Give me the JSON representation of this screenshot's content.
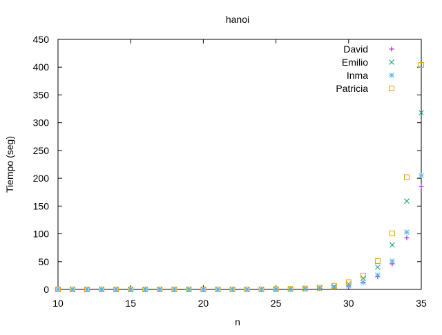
{
  "chart_data": {
    "type": "scatter",
    "title": "hanoi",
    "xlabel": "n",
    "ylabel": "Tiempo (seg)",
    "xlim": [
      10,
      35
    ],
    "ylim": [
      0,
      450
    ],
    "xticks": [
      10,
      15,
      20,
      25,
      30,
      35
    ],
    "yticks": [
      0,
      50,
      100,
      150,
      200,
      250,
      300,
      350,
      400,
      450
    ],
    "grid": false,
    "legend_position": "top-right",
    "x": [
      10,
      11,
      12,
      13,
      14,
      15,
      16,
      17,
      18,
      19,
      20,
      21,
      22,
      23,
      24,
      25,
      26,
      27,
      28,
      29,
      30,
      31,
      32,
      33,
      34,
      35
    ],
    "series": [
      {
        "name": "David",
        "marker": "plus",
        "color": "#9400d3",
        "values": [
          0,
          0,
          0,
          0,
          0,
          0,
          0,
          0,
          0,
          0,
          0,
          0,
          0,
          0,
          0,
          0.2,
          0.4,
          0.8,
          1.5,
          3,
          6,
          12,
          23,
          46,
          93,
          185
        ]
      },
      {
        "name": "Emilio",
        "marker": "cross",
        "color": "#009e73",
        "values": [
          0,
          0,
          0,
          0,
          0,
          0,
          0,
          0,
          0,
          0,
          0,
          0,
          0,
          0,
          0,
          0.3,
          0.6,
          1.2,
          2.5,
          5,
          10,
          20,
          40,
          80,
          159,
          318
        ]
      },
      {
        "name": "Inma",
        "marker": "star",
        "color": "#56b4e9",
        "values": [
          0,
          0,
          0,
          0,
          0,
          0,
          0,
          0,
          0,
          0,
          0,
          0,
          0,
          0,
          0,
          0.2,
          0.4,
          0.8,
          1.6,
          3.2,
          6.5,
          13,
          26,
          51,
          103,
          205
        ]
      },
      {
        "name": "Patricia",
        "marker": "square",
        "color": "#e69f00",
        "values": [
          0,
          0,
          0,
          0,
          0,
          0,
          0,
          0,
          0,
          0,
          0,
          0,
          0,
          0,
          0,
          0.4,
          0.8,
          1.6,
          3.2,
          6.5,
          13,
          25,
          51,
          101,
          202,
          404
        ]
      }
    ]
  }
}
